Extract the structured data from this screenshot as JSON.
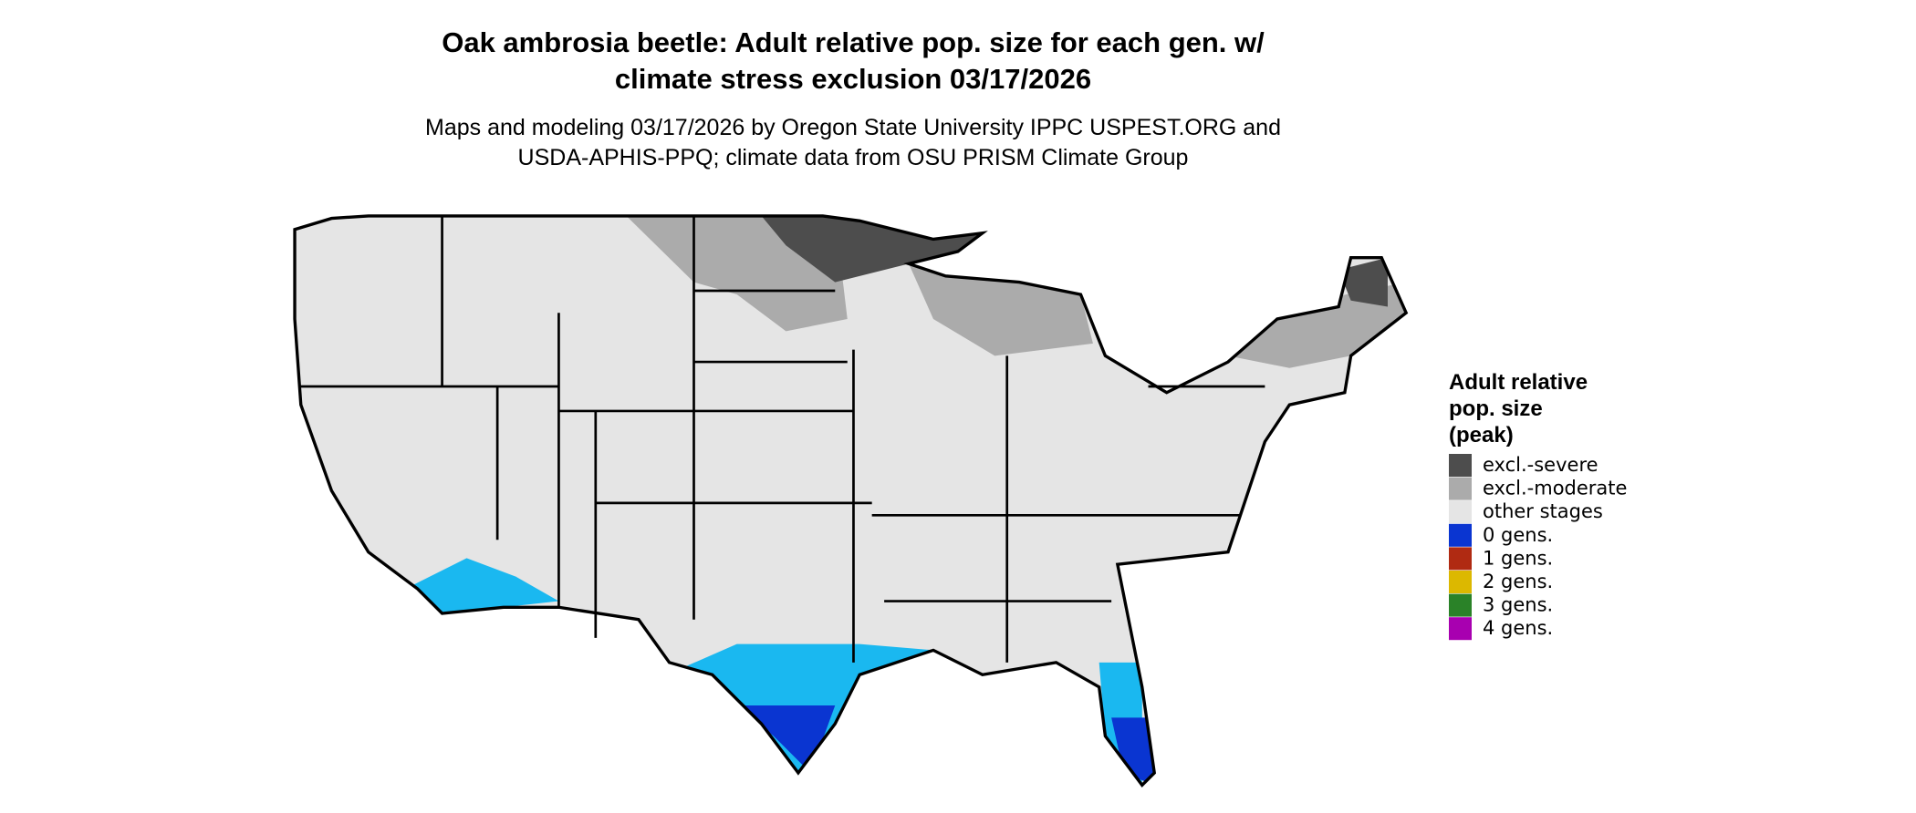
{
  "title": [
    "Oak ambrosia beetle: Adult relative pop. size for each gen. w/",
    "climate stress exclusion 03/17/2026"
  ],
  "subtitle": [
    "Maps and modeling 03/17/2026 by Oregon State University IPPC USPEST.ORG and",
    "USDA-APHIS-PPQ; climate data from OSU PRISM Climate Group"
  ],
  "legend": {
    "title": [
      "Adult relative",
      "pop. size",
      "(peak)"
    ],
    "items": [
      {
        "label": "excl.-severe",
        "color": "#4d4d4d"
      },
      {
        "label": "excl.-moderate",
        "color": "#ababab"
      },
      {
        "label": "other stages",
        "color": "#e5e5e5"
      },
      {
        "label": "0 gens.",
        "color": "#0a35d1"
      },
      {
        "label": "1 gens.",
        "color": "#b02a12"
      },
      {
        "label": "2 gens.",
        "color": "#dcb800"
      },
      {
        "label": "3 gens.",
        "color": "#2a8228"
      },
      {
        "label": "4 gens.",
        "color": "#a800b0"
      }
    ]
  }
}
